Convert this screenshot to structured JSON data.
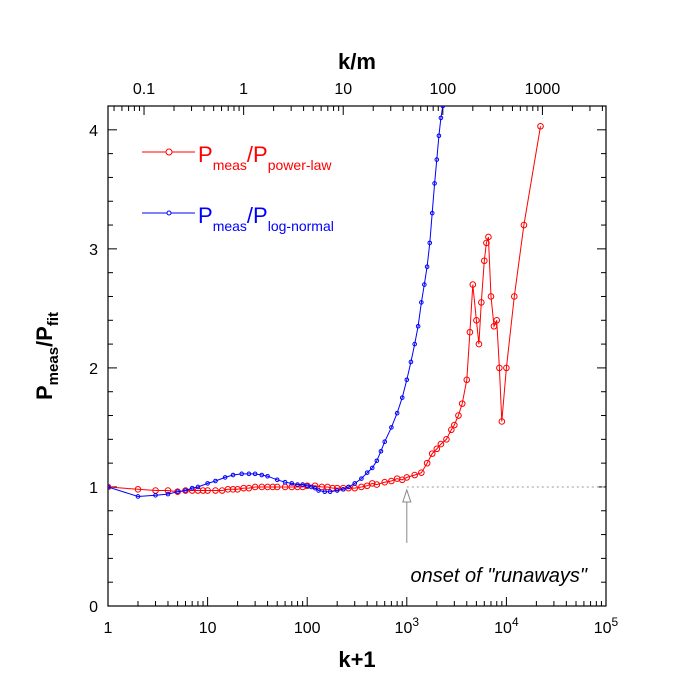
{
  "chart_data": {
    "type": "line",
    "xlabel": "k+1",
    "top_xlabel": "k/m",
    "ylabel": {
      "main": "P",
      "sub1": "meas",
      "sep": "/P",
      "sub2": "fit"
    },
    "x_scale": "log",
    "xlim": [
      1,
      100000
    ],
    "ylim": [
      0,
      4.2
    ],
    "x_ticks": [
      {
        "value": 1,
        "label": "1"
      },
      {
        "value": 10,
        "label": "10"
      },
      {
        "value": 100,
        "label": "100"
      },
      {
        "value": 1000,
        "label": "10",
        "exp": "3"
      },
      {
        "value": 10000,
        "label": "10",
        "exp": "4"
      },
      {
        "value": 100000,
        "label": "10",
        "exp": "5"
      }
    ],
    "y_ticks": [
      {
        "value": 0,
        "label": "0"
      },
      {
        "value": 1,
        "label": "1"
      },
      {
        "value": 2,
        "label": "2"
      },
      {
        "value": 3,
        "label": "3"
      },
      {
        "value": 4,
        "label": "4"
      }
    ],
    "top_ticks": [
      {
        "value": 0.1,
        "label": "0.1"
      },
      {
        "value": 1,
        "label": "1"
      },
      {
        "value": 10,
        "label": "10"
      },
      {
        "value": 100,
        "label": "100"
      },
      {
        "value": 1000,
        "label": "1000"
      }
    ],
    "top_scale_factor": 23,
    "grid": false,
    "legend_position": "top-left",
    "reference_line": {
      "y": 1,
      "from_x": 1000,
      "to_x": 100000,
      "style": "dotted",
      "color": "#999999"
    },
    "annotation": {
      "text": "onset of \"runaways\"",
      "arrow_x": 1000,
      "arrow_y": 1
    },
    "series": [
      {
        "name": "P_meas/P_power-law",
        "label": {
          "main1": "P",
          "sub1": "meas",
          "main2": "/P",
          "sub2": "power-law"
        },
        "color": "#ff0000",
        "marker_size": 2.8,
        "points": [
          [
            1,
            1.0
          ],
          [
            2,
            0.98
          ],
          [
            3,
            0.97
          ],
          [
            4,
            0.97
          ],
          [
            5,
            0.96
          ],
          [
            6,
            0.97
          ],
          [
            7,
            0.97
          ],
          [
            8,
            0.97
          ],
          [
            9,
            0.97
          ],
          [
            10,
            0.97
          ],
          [
            12,
            0.97
          ],
          [
            14,
            0.97
          ],
          [
            16,
            0.98
          ],
          [
            18,
            0.98
          ],
          [
            20,
            0.98
          ],
          [
            23,
            0.99
          ],
          [
            26,
            0.99
          ],
          [
            30,
            1.0
          ],
          [
            35,
            1.0
          ],
          [
            40,
            1.0
          ],
          [
            45,
            1.0
          ],
          [
            50,
            1.0
          ],
          [
            60,
            1.0
          ],
          [
            70,
            1.0
          ],
          [
            80,
            1.0
          ],
          [
            90,
            1.0
          ],
          [
            100,
            1.01
          ],
          [
            120,
            1.01
          ],
          [
            140,
            1.0
          ],
          [
            160,
            1.0
          ],
          [
            180,
            0.99
          ],
          [
            200,
            0.99
          ],
          [
            230,
            0.99
          ],
          [
            260,
            0.99
          ],
          [
            300,
            0.99
          ],
          [
            350,
            1.0
          ],
          [
            400,
            1.01
          ],
          [
            450,
            1.03
          ],
          [
            500,
            1.02
          ],
          [
            600,
            1.04
          ],
          [
            700,
            1.05
          ],
          [
            800,
            1.07
          ],
          [
            900,
            1.06
          ],
          [
            1000,
            1.08
          ],
          [
            1200,
            1.1
          ],
          [
            1400,
            1.12
          ],
          [
            1600,
            1.2
          ],
          [
            1800,
            1.28
          ],
          [
            2000,
            1.32
          ],
          [
            2200,
            1.36
          ],
          [
            2500,
            1.4
          ],
          [
            2800,
            1.48
          ],
          [
            3000,
            1.52
          ],
          [
            3300,
            1.6
          ],
          [
            3600,
            1.7
          ],
          [
            4000,
            1.9
          ],
          [
            4300,
            2.3
          ],
          [
            4600,
            2.7
          ],
          [
            5000,
            2.4
          ],
          [
            5300,
            2.2
          ],
          [
            5600,
            2.55
          ],
          [
            6000,
            2.9
          ],
          [
            6300,
            3.05
          ],
          [
            6600,
            3.1
          ],
          [
            7000,
            2.6
          ],
          [
            7500,
            2.35
          ],
          [
            8000,
            2.4
          ],
          [
            8500,
            2.0
          ],
          [
            9000,
            1.55
          ],
          [
            10000,
            2.0
          ],
          [
            12000,
            2.6
          ],
          [
            15000,
            3.2
          ],
          [
            22000,
            4.03
          ]
        ]
      },
      {
        "name": "P_meas/P_log-normal",
        "label": {
          "main1": "P",
          "sub1": "meas",
          "main2": "/P",
          "sub2": "log-normal"
        },
        "color": "#0000ff",
        "marker_size": 1.8,
        "points": [
          [
            1,
            1.0
          ],
          [
            2,
            0.92
          ],
          [
            3,
            0.93
          ],
          [
            4,
            0.94
          ],
          [
            5,
            0.96
          ],
          [
            6,
            0.97
          ],
          [
            7,
            0.99
          ],
          [
            8,
            1.0
          ],
          [
            10,
            1.03
          ],
          [
            12,
            1.05
          ],
          [
            15,
            1.08
          ],
          [
            18,
            1.1
          ],
          [
            22,
            1.11
          ],
          [
            26,
            1.11
          ],
          [
            30,
            1.11
          ],
          [
            35,
            1.1
          ],
          [
            40,
            1.09
          ],
          [
            50,
            1.06
          ],
          [
            60,
            1.04
          ],
          [
            70,
            1.03
          ],
          [
            80,
            1.02
          ],
          [
            90,
            1.02
          ],
          [
            100,
            1.01
          ],
          [
            110,
            1.0
          ],
          [
            120,
            0.99
          ],
          [
            130,
            0.97
          ],
          [
            150,
            0.96
          ],
          [
            170,
            0.96
          ],
          [
            200,
            0.97
          ],
          [
            230,
            0.98
          ],
          [
            260,
            1.0
          ],
          [
            300,
            1.03
          ],
          [
            350,
            1.07
          ],
          [
            400,
            1.12
          ],
          [
            450,
            1.16
          ],
          [
            500,
            1.22
          ],
          [
            550,
            1.3
          ],
          [
            600,
            1.38
          ],
          [
            700,
            1.5
          ],
          [
            800,
            1.62
          ],
          [
            900,
            1.75
          ],
          [
            1000,
            1.9
          ],
          [
            1100,
            2.05
          ],
          [
            1200,
            2.2
          ],
          [
            1300,
            2.35
          ],
          [
            1400,
            2.55
          ],
          [
            1500,
            2.7
          ],
          [
            1600,
            2.85
          ],
          [
            1700,
            3.05
          ],
          [
            1800,
            3.3
          ],
          [
            1900,
            3.55
          ],
          [
            2000,
            3.75
          ],
          [
            2100,
            3.95
          ],
          [
            2200,
            4.1
          ],
          [
            2300,
            4.2
          ]
        ]
      }
    ]
  }
}
